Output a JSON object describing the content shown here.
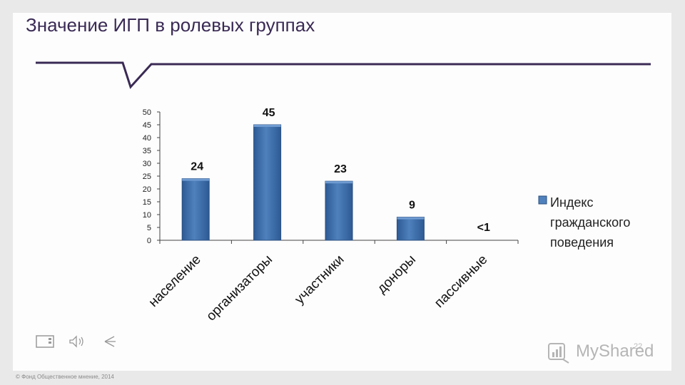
{
  "slide": {
    "title": "Значение ИГП в ролевых группах",
    "footer": "© Фонд Общественное мнение, 2014",
    "page_number": "22",
    "watermark": "MyShared"
  },
  "colors": {
    "bar": "#4f81bd",
    "bar_dark": "#2d5a94",
    "title": "#3a2a55",
    "callout_line": "#3a2a55"
  },
  "chart_data": {
    "type": "bar",
    "categories": [
      "население",
      "организаторы",
      "участники",
      "доноры",
      "пассивные"
    ],
    "series": [
      {
        "name": "Индекс гражданского поведения",
        "values": [
          24,
          45,
          23,
          9,
          0.5
        ]
      }
    ],
    "data_labels": [
      "24",
      "45",
      "23",
      "9",
      "<1"
    ],
    "y_ticks": [
      "0",
      "5",
      "10",
      "15",
      "20",
      "25",
      "30",
      "35",
      "40",
      "45",
      "50"
    ],
    "ylim": [
      0,
      50
    ],
    "grid": false,
    "legend_position": "right",
    "legend_lines": [
      "Индекс",
      "гражданского",
      "поведения"
    ]
  }
}
